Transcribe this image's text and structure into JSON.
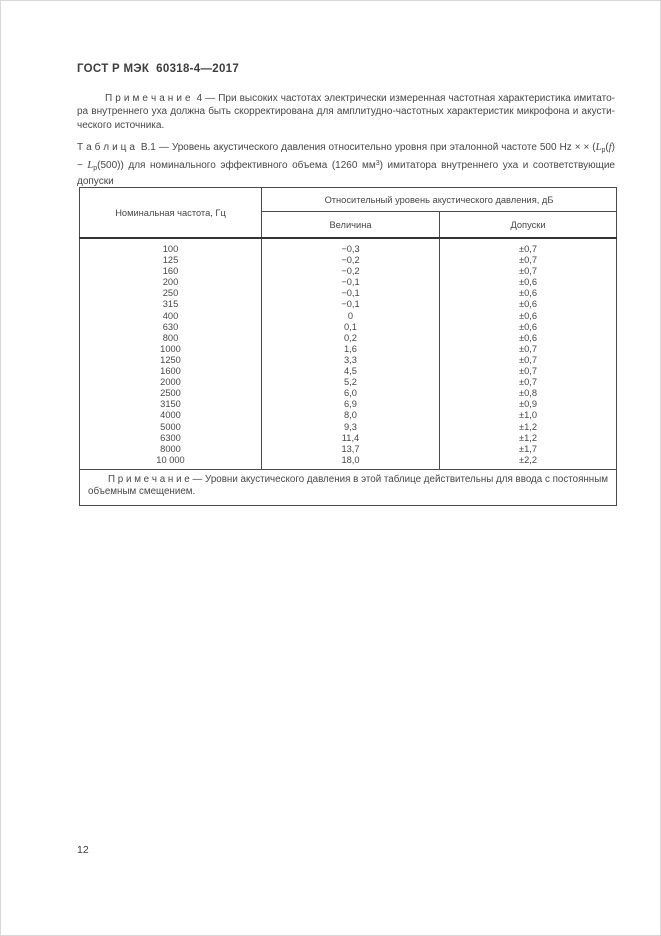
{
  "page": {
    "header": "ГОСТ Р МЭК  60318-4—2017",
    "page_number": "12"
  },
  "note4": {
    "label": "П р и м е ч а н и е  4 — ",
    "text": "При высоких частотах электрически измеренная частотная характеристика имитато­ра внутреннего уха должна быть скорректирована для амплитудно-частотных характеристик микрофона и акусти­ческого источника."
  },
  "table_caption": {
    "label": "Т а б л и ц а  В.1",
    "dash": " — ",
    "part1": "Уровень акустического давления относительно уровня при эталонной частоте 500 Hz × × (",
    "L1": "L",
    "sub1": "p",
    "open1": "(",
    "f": "f",
    "mid": ") − ",
    "L2": "L",
    "sub2": "p",
    "part2": "(500)) для номинального эффективного объема (1260 мм",
    "sup3": "3",
    "part3": ") имитатора внутреннего уха и соответствую­щие допуски"
  },
  "table": {
    "col1_header": "Номинальная частота, Гц",
    "group_header": "Относительный уровень акустического давления, дБ",
    "col2_header": "Величина",
    "col3_header": "Допуски",
    "rows": [
      {
        "freq": "100",
        "value": "−0,3",
        "tol": "±0,7"
      },
      {
        "freq": "125",
        "value": "−0,2",
        "tol": "±0,7"
      },
      {
        "freq": "160",
        "value": "−0,2",
        "tol": "±0,7"
      },
      {
        "freq": "200",
        "value": "−0,1",
        "tol": "±0,6"
      },
      {
        "freq": "250",
        "value": "−0,1",
        "tol": "±0,6"
      },
      {
        "freq": "315",
        "value": "−0,1",
        "tol": "±0,6"
      },
      {
        "freq": "400",
        "value": "0",
        "tol": "±0,6"
      },
      {
        "freq": "630",
        "value": "0,1",
        "tol": "±0,6"
      },
      {
        "freq": "800",
        "value": "0,2",
        "tol": "±0,6"
      },
      {
        "freq": "1000",
        "value": "1,6",
        "tol": "±0,7"
      },
      {
        "freq": "1250",
        "value": "3,3",
        "tol": "±0,7"
      },
      {
        "freq": "1600",
        "value": "4,5",
        "tol": "±0,7"
      },
      {
        "freq": "2000",
        "value": "5,2",
        "tol": "±0,7"
      },
      {
        "freq": "2500",
        "value": "6,0",
        "tol": "±0,8"
      },
      {
        "freq": "3150",
        "value": "6,9",
        "tol": "±0,9"
      },
      {
        "freq": "4000",
        "value": "8,0",
        "tol": "±1,0"
      },
      {
        "freq": "5000",
        "value": "9,3",
        "tol": "±1,2"
      },
      {
        "freq": "6300",
        "value": "11,4",
        "tol": "±1,2"
      },
      {
        "freq": "8000",
        "value": "13,7",
        "tol": "±1,7"
      },
      {
        "freq": "10 000",
        "value": "18,0",
        "tol": "±2,2"
      }
    ],
    "note_label": "П р и м е ч а н и е — ",
    "note_text": "Уровни акустического давления в этой таблице действительны для ввода с постоян­ным объемным смещением."
  }
}
